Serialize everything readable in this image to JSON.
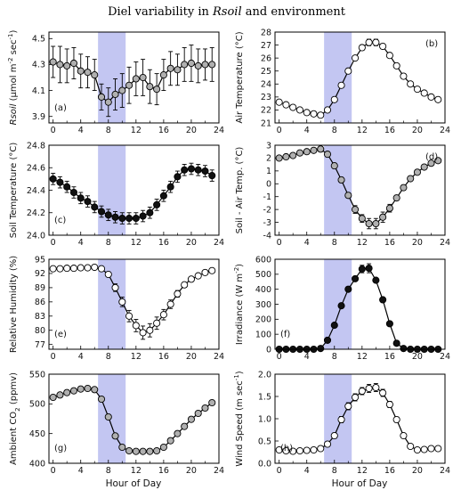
{
  "figure": {
    "title_prefix": "Diel variability in ",
    "title_italic": "Rsoil",
    "title_suffix": " and environment",
    "shading": [
      6.5,
      10.5
    ],
    "shade_color": "#b9bcf0",
    "x_axis_label": "Hour of Day"
  },
  "chart_data": [
    {
      "id": "a",
      "panel_label": "(a)",
      "type": "scatter",
      "ylabel_parts": [
        {
          "t": "Rsoil",
          "style": "italic"
        },
        {
          "t": " (µmol m"
        },
        {
          "t": "-2",
          "style": "sup"
        },
        {
          "t": " sec"
        },
        {
          "t": "-1",
          "style": "sup"
        },
        {
          "t": ")"
        }
      ],
      "xlim": [
        -0.6,
        24
      ],
      "ylim": [
        3.85,
        4.55
      ],
      "xticks": [
        "0",
        "4",
        "8",
        "12",
        "16",
        "20",
        "24"
      ],
      "yticks": [
        "3.9",
        "4.1",
        "4.3",
        "4.5"
      ],
      "marker_fill": "#b0b0b0",
      "x": [
        0,
        1,
        2,
        3,
        4,
        5,
        6,
        7,
        8,
        9,
        10,
        11,
        12,
        13,
        14,
        15,
        16,
        17,
        18,
        19,
        20,
        21,
        22,
        23
      ],
      "y": [
        4.32,
        4.3,
        4.29,
        4.31,
        4.25,
        4.24,
        4.22,
        4.05,
        4.01,
        4.07,
        4.1,
        4.14,
        4.19,
        4.2,
        4.13,
        4.11,
        4.22,
        4.27,
        4.26,
        4.3,
        4.31,
        4.29,
        4.3,
        4.3
      ],
      "err": [
        0.12,
        0.14,
        0.13,
        0.12,
        0.13,
        0.12,
        0.12,
        0.1,
        0.11,
        0.12,
        0.13,
        0.14,
        0.13,
        0.14,
        0.13,
        0.12,
        0.12,
        0.13,
        0.12,
        0.13,
        0.14,
        0.13,
        0.12,
        0.13
      ]
    },
    {
      "id": "b",
      "panel_label": "(b)",
      "type": "scatter",
      "ylabel_parts": [
        {
          "t": "Air Temperature (°C)"
        }
      ],
      "xlim": [
        -0.6,
        24
      ],
      "ylim": [
        21,
        28
      ],
      "xticks": [
        "0",
        "4",
        "8",
        "12",
        "16",
        "20",
        "24"
      ],
      "yticks": [
        "21",
        "22",
        "23",
        "24",
        "25",
        "26",
        "27",
        "28"
      ],
      "marker_fill": "#ffffff",
      "x": [
        0,
        1,
        2,
        3,
        4,
        5,
        6,
        7,
        8,
        9,
        10,
        11,
        12,
        13,
        14,
        15,
        16,
        17,
        18,
        19,
        20,
        21,
        22,
        23
      ],
      "y": [
        22.6,
        22.4,
        22.2,
        22.0,
        21.8,
        21.7,
        21.6,
        22.0,
        22.8,
        23.9,
        25.0,
        26.0,
        26.8,
        27.2,
        27.2,
        26.9,
        26.2,
        25.4,
        24.6,
        24.0,
        23.6,
        23.3,
        23.0,
        22.8
      ],
      "err": [
        0,
        0,
        0,
        0,
        0,
        0,
        0,
        0,
        0,
        0,
        0,
        0,
        0.2,
        0.25,
        0.25,
        0.2,
        0,
        0,
        0,
        0,
        0,
        0,
        0,
        0
      ]
    },
    {
      "id": "c",
      "panel_label": "(c)",
      "type": "scatter",
      "ylabel_parts": [
        {
          "t": "Soil Temperature (°C)"
        }
      ],
      "xlim": [
        -0.6,
        24
      ],
      "ylim": [
        24.0,
        24.8
      ],
      "xticks": [
        "0",
        "4",
        "8",
        "12",
        "16",
        "20",
        "24"
      ],
      "yticks": [
        "24.0",
        "24.2",
        "24.4",
        "24.6",
        "24.8"
      ],
      "marker_fill": "#111111",
      "x": [
        0,
        1,
        2,
        3,
        4,
        5,
        6,
        7,
        8,
        9,
        10,
        11,
        12,
        13,
        14,
        15,
        16,
        17,
        18,
        19,
        20,
        21,
        22,
        23
      ],
      "y": [
        24.5,
        24.47,
        24.43,
        24.38,
        24.33,
        24.3,
        24.25,
        24.21,
        24.18,
        24.16,
        24.15,
        24.15,
        24.15,
        24.17,
        24.2,
        24.27,
        24.35,
        24.43,
        24.52,
        24.58,
        24.59,
        24.58,
        24.57,
        24.53
      ],
      "err": [
        0.05,
        0.05,
        0.05,
        0.05,
        0.05,
        0.05,
        0.05,
        0.05,
        0.05,
        0.05,
        0.05,
        0.05,
        0.05,
        0.05,
        0.05,
        0.05,
        0.05,
        0.05,
        0.05,
        0.05,
        0.05,
        0.05,
        0.05,
        0.05
      ]
    },
    {
      "id": "d",
      "panel_label": "(d)",
      "type": "scatter",
      "ylabel_parts": [
        {
          "t": "Soil - Air Temp. (°C)"
        }
      ],
      "xlim": [
        -0.6,
        24
      ],
      "ylim": [
        -4,
        3
      ],
      "xticks": [
        "0",
        "4",
        "8",
        "12",
        "16",
        "20",
        "24"
      ],
      "yticks": [
        "-4",
        "-3",
        "-2",
        "-1",
        "0",
        "1",
        "2",
        "3"
      ],
      "marker_fill": "#b0b0b0",
      "x": [
        0,
        1,
        2,
        3,
        4,
        5,
        6,
        7,
        8,
        9,
        10,
        11,
        12,
        13,
        14,
        15,
        16,
        17,
        18,
        19,
        20,
        21,
        22,
        23
      ],
      "y": [
        2.0,
        2.1,
        2.2,
        2.4,
        2.5,
        2.6,
        2.7,
        2.3,
        1.4,
        0.3,
        -0.9,
        -2.0,
        -2.7,
        -3.1,
        -3.1,
        -2.6,
        -1.9,
        -1.1,
        -0.3,
        0.4,
        0.9,
        1.3,
        1.6,
        1.8
      ],
      "err": [
        0.1,
        0.1,
        0.1,
        0.1,
        0.1,
        0.1,
        0.2,
        0.2,
        0.2,
        0.2,
        0.2,
        0.3,
        0.3,
        0.4,
        0.4,
        0.4,
        0.3,
        0.2,
        0.2,
        0.1,
        0.1,
        0.1,
        0.1,
        0.1
      ]
    },
    {
      "id": "e",
      "panel_label": "(e)",
      "type": "scatter",
      "ylabel_parts": [
        {
          "t": "Relative Humidity (%)"
        }
      ],
      "xlim": [
        -0.6,
        24
      ],
      "ylim": [
        76,
        95
      ],
      "xticks": [
        "0",
        "4",
        "8",
        "12",
        "16",
        "20",
        "24"
      ],
      "yticks": [
        "77",
        "80",
        "83",
        "86",
        "89",
        "92",
        "95"
      ],
      "marker_fill": "#ffffff",
      "x": [
        0,
        1,
        2,
        3,
        4,
        5,
        6,
        7,
        8,
        9,
        10,
        11,
        12,
        13,
        14,
        15,
        16,
        17,
        18,
        19,
        20,
        21,
        22,
        23
      ],
      "y": [
        93.0,
        93.0,
        93.1,
        93.1,
        93.2,
        93.2,
        93.3,
        93.0,
        91.8,
        89.0,
        86.0,
        83.0,
        81.0,
        79.5,
        80.0,
        81.5,
        83.3,
        85.5,
        87.7,
        89.6,
        90.8,
        91.5,
        92.2,
        92.6
      ],
      "err": [
        0.3,
        0.3,
        0.3,
        0.3,
        0.3,
        0.3,
        0.3,
        0.4,
        0.5,
        0.8,
        1.0,
        1.2,
        1.3,
        1.4,
        1.4,
        1.3,
        1.1,
        0.9,
        0.7,
        0.5,
        0.4,
        0.3,
        0.3,
        0.3
      ]
    },
    {
      "id": "f",
      "panel_label": "(f)",
      "type": "scatter",
      "ylabel_parts": [
        {
          "t": "Irradiance (W m"
        },
        {
          "t": "-2",
          "style": "sup"
        },
        {
          "t": ")"
        }
      ],
      "xlim": [
        -0.6,
        24
      ],
      "ylim": [
        0,
        600
      ],
      "xticks": [
        "0",
        "4",
        "8",
        "12",
        "16",
        "20",
        "24"
      ],
      "yticks": [
        "0",
        "100",
        "200",
        "300",
        "400",
        "500",
        "600"
      ],
      "marker_fill": "#111111",
      "x": [
        0,
        1,
        2,
        3,
        4,
        5,
        6,
        7,
        8,
        9,
        10,
        11,
        12,
        13,
        14,
        15,
        16,
        17,
        18,
        19,
        20,
        21,
        22,
        23
      ],
      "y": [
        0,
        0,
        0,
        0,
        0,
        0,
        5,
        60,
        160,
        290,
        400,
        470,
        535,
        540,
        460,
        330,
        170,
        40,
        5,
        0,
        0,
        0,
        0,
        0
      ],
      "err": [
        0,
        0,
        0,
        0,
        0,
        0,
        0,
        0,
        0,
        0,
        0,
        0,
        25,
        30,
        0,
        0,
        0,
        0,
        0,
        0,
        0,
        0,
        0,
        0
      ]
    },
    {
      "id": "g",
      "panel_label": "(g)",
      "type": "scatter",
      "ylabel_parts": [
        {
          "t": "Ambient CO"
        },
        {
          "t": "2",
          "style": "sub"
        },
        {
          "t": " (ppmv)"
        }
      ],
      "xlim": [
        -0.6,
        24
      ],
      "ylim": [
        400,
        550
      ],
      "xticks": [
        "0",
        "4",
        "8",
        "12",
        "16",
        "20",
        "24"
      ],
      "yticks": [
        "400",
        "450",
        "500",
        "550"
      ],
      "marker_fill": "#b0b0b0",
      "x": [
        0,
        1,
        2,
        3,
        4,
        5,
        6,
        7,
        8,
        9,
        10,
        11,
        12,
        13,
        14,
        15,
        16,
        17,
        18,
        19,
        20,
        21,
        22,
        23
      ],
      "y": [
        511,
        515,
        519,
        522,
        525,
        526,
        524,
        508,
        478,
        446,
        427,
        421,
        420,
        420,
        420,
        421,
        427,
        438,
        450,
        462,
        474,
        484,
        493,
        502
      ],
      "err": [
        4,
        4,
        4,
        4,
        4,
        4,
        4,
        4,
        3,
        3,
        3,
        2,
        2,
        2,
        2,
        2,
        3,
        3,
        3,
        3,
        3,
        3,
        3,
        4
      ]
    },
    {
      "id": "h",
      "panel_label": "(h)",
      "type": "scatter",
      "ylabel_parts": [
        {
          "t": "Wind Speed (m sec"
        },
        {
          "t": "-1",
          "style": "sup"
        },
        {
          "t": ")"
        }
      ],
      "xlim": [
        -0.6,
        24
      ],
      "ylim": [
        0,
        2.0
      ],
      "xticks": [
        "0",
        "4",
        "8",
        "12",
        "16",
        "20",
        "24"
      ],
      "yticks": [
        "0.0",
        "0.5",
        "1.0",
        "1.5",
        "2.0"
      ],
      "marker_fill": "#ffffff",
      "x": [
        0,
        1,
        2,
        3,
        4,
        5,
        6,
        7,
        8,
        9,
        10,
        11,
        12,
        13,
        14,
        15,
        16,
        17,
        18,
        19,
        20,
        21,
        22,
        23
      ],
      "y": [
        0.3,
        0.28,
        0.27,
        0.28,
        0.29,
        0.3,
        0.33,
        0.43,
        0.62,
        0.98,
        1.28,
        1.48,
        1.62,
        1.68,
        1.7,
        1.58,
        1.32,
        0.98,
        0.62,
        0.38,
        0.3,
        0.31,
        0.33,
        0.33
      ],
      "err": [
        0.03,
        0.03,
        0.03,
        0.03,
        0.03,
        0.03,
        0.04,
        0.05,
        0.06,
        0.07,
        0.08,
        0.08,
        0.08,
        0.09,
        0.09,
        0.08,
        0.07,
        0.06,
        0.05,
        0.04,
        0.03,
        0.03,
        0.03,
        0.03
      ]
    }
  ]
}
